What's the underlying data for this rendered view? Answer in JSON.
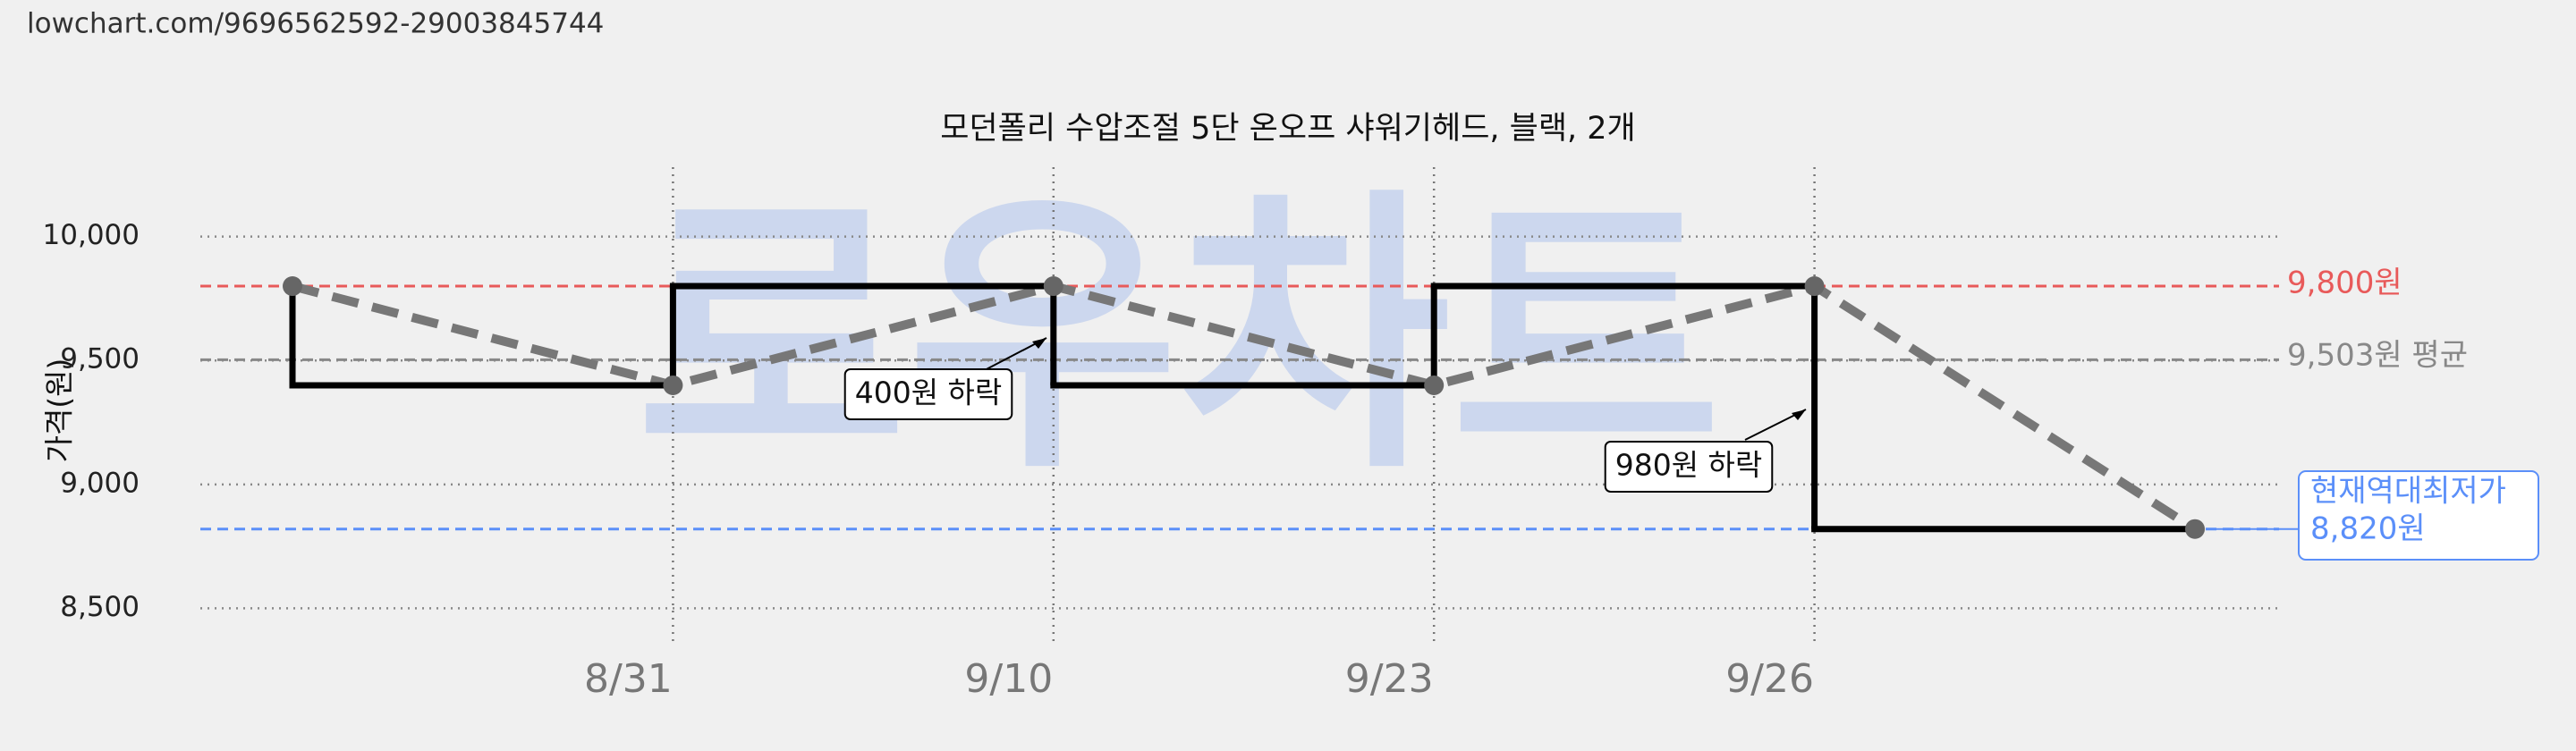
{
  "url": "lowchart.com/9696562592-29003845744",
  "chart_data": {
    "type": "step",
    "title": "모던폴리 수압조절 5단 온오프 샤워기헤드, 블랙, 2개",
    "y_label": "가격(원)",
    "watermark": "로우차트",
    "x": [
      null,
      "8/31",
      "9/10",
      "9/23",
      "9/26",
      null
    ],
    "values": [
      9800,
      9400,
      9800,
      9400,
      9800,
      8820
    ],
    "step_color": "#000000",
    "trend_color": "#777777",
    "ylim": [
      8350,
      10280
    ],
    "yticks": [
      {
        "value": 8500,
        "label": "8,500"
      },
      {
        "value": 9000,
        "label": "9,000"
      },
      {
        "value": 9500,
        "label": "9,500"
      },
      {
        "value": 10000,
        "label": "10,000"
      }
    ],
    "grid": true,
    "reference_lines": [
      {
        "value": 9800,
        "label": "9,800원",
        "color": "#e85a5a"
      },
      {
        "value": 9503,
        "label": "9,503원 평균",
        "color": "#888888"
      },
      {
        "value": 8820,
        "label": "8,820원",
        "note": "현재역대최저가",
        "color": "#5b8ff9"
      }
    ],
    "annotations": [
      "400원 하락",
      "980원 하락"
    ]
  }
}
